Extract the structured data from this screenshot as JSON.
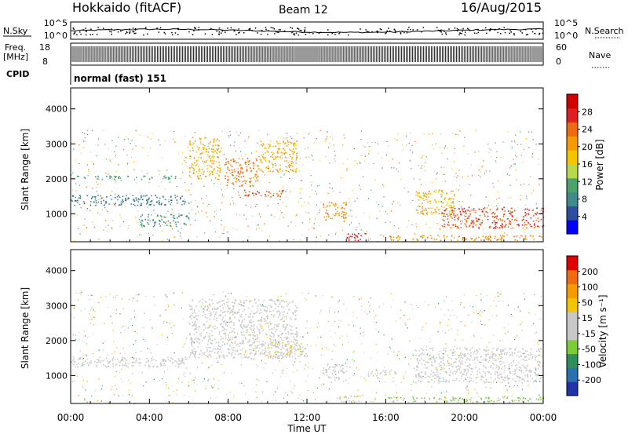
{
  "header": {
    "title": "Hokkaido (fitACF)",
    "beam": "Beam 12",
    "date": "16/Aug/2015",
    "cpid_label": "CPID",
    "cpid_value": "normal (fast) 151"
  },
  "top_panels": {
    "nsky_label": "N.Sky",
    "nsearch_label": "N.Search",
    "noise_ticks": [
      "10^5",
      "10^0"
    ],
    "freq_label_1": "Freq.",
    "freq_label_2": "[MHz]",
    "freq_ticks": [
      "18",
      "8"
    ],
    "nave_label": "Nave",
    "nave_ticks": [
      "60",
      "0"
    ]
  },
  "colors": {
    "power_scale": [
      "#0000ff",
      "#2d4fa0",
      "#3f8a8a",
      "#4aa36b",
      "#b9d84a",
      "#f5c400",
      "#f59a00",
      "#f06a10",
      "#e02020",
      "#d40000"
    ],
    "velocity_scale": [
      "#2233aa",
      "#2c6fb0",
      "#2f8f5a",
      "#7ccc3a",
      "#c8c8c8",
      "#c8c8c8",
      "#f5c400",
      "#f59a00",
      "#f06a10",
      "#e00000"
    ]
  },
  "chart_data": [
    {
      "type": "heatmap",
      "name": "power_panel",
      "title": "",
      "xlabel": "Time UT",
      "ylabel": "Slant Range [km]",
      "x_ticks": [
        "00:00",
        "04:00",
        "08:00",
        "12:00",
        "16:00",
        "20:00",
        "00:00"
      ],
      "y_ticks": [
        "1000",
        "2000",
        "3000",
        "4000"
      ],
      "ylim": [
        200,
        4600
      ],
      "colorbar": {
        "label": "Power [dB]",
        "ticks": [
          "28",
          "24",
          "20",
          "16",
          "12",
          "8",
          "4"
        ],
        "range": [
          0,
          30
        ]
      },
      "echo_regions": [
        {
          "t0": 0.0,
          "t1": 6.0,
          "r0": 1250,
          "r1": 1550,
          "value": 7
        },
        {
          "t0": 0.0,
          "t1": 5.5,
          "r0": 2000,
          "r1": 2100,
          "value": 10
        },
        {
          "t0": 3.5,
          "t1": 6.0,
          "r0": 650,
          "r1": 1000,
          "value": 9
        },
        {
          "t0": 6.0,
          "t1": 7.6,
          "r0": 2000,
          "r1": 3200,
          "value": 18
        },
        {
          "t0": 7.8,
          "t1": 9.5,
          "r0": 1800,
          "r1": 2600,
          "value": 22
        },
        {
          "t0": 8.8,
          "t1": 10.8,
          "r0": 1500,
          "r1": 1700,
          "value": 24
        },
        {
          "t0": 9.5,
          "t1": 11.5,
          "r0": 2200,
          "r1": 3100,
          "value": 18
        },
        {
          "t0": 12.8,
          "t1": 14.0,
          "r0": 800,
          "r1": 1350,
          "value": 20
        },
        {
          "t0": 14.0,
          "t1": 15.0,
          "r0": 250,
          "r1": 450,
          "value": 27
        },
        {
          "t0": 17.5,
          "t1": 19.5,
          "r0": 1000,
          "r1": 1700,
          "value": 18
        },
        {
          "t0": 18.8,
          "t1": 24.0,
          "r0": 600,
          "r1": 1200,
          "value": 24
        },
        {
          "t0": 16.0,
          "t1": 24.0,
          "r0": 250,
          "r1": 400,
          "value": 20
        }
      ]
    },
    {
      "type": "heatmap",
      "name": "velocity_panel",
      "title": "",
      "xlabel": "Time UT",
      "ylabel": "Slant Range [km]",
      "x_ticks": [
        "00:00",
        "04:00",
        "08:00",
        "12:00",
        "16:00",
        "20:00",
        "00:00"
      ],
      "y_ticks": [
        "1000",
        "2000",
        "3000",
        "4000"
      ],
      "ylim": [
        200,
        4600
      ],
      "colorbar": {
        "label": "Velocity [m s⁻¹]",
        "ticks": [
          "200",
          "100",
          "50",
          "15",
          "-15",
          "-50",
          "-100",
          "-200"
        ],
        "range": [
          -250,
          250
        ]
      },
      "echo_regions": [
        {
          "t0": 0.0,
          "t1": 6.0,
          "r0": 1250,
          "r1": 1550,
          "value": 0
        },
        {
          "t0": 6.0,
          "t1": 11.5,
          "r0": 1500,
          "r1": 3200,
          "value": 5
        },
        {
          "t0": 10.0,
          "t1": 12.0,
          "r0": 1500,
          "r1": 2000,
          "value": 40
        },
        {
          "t0": 12.8,
          "t1": 14.0,
          "r0": 800,
          "r1": 1350,
          "value": 0
        },
        {
          "t0": 13.5,
          "t1": 15.0,
          "r0": 250,
          "r1": 450,
          "value": 30
        },
        {
          "t0": 15.0,
          "t1": 16.5,
          "r0": 1000,
          "r1": 1200,
          "value": 35
        },
        {
          "t0": 17.5,
          "t1": 24.0,
          "r0": 800,
          "r1": 1800,
          "value": 0
        },
        {
          "t0": 16.0,
          "t1": 24.0,
          "r0": 250,
          "r1": 400,
          "value": -60
        }
      ]
    }
  ]
}
